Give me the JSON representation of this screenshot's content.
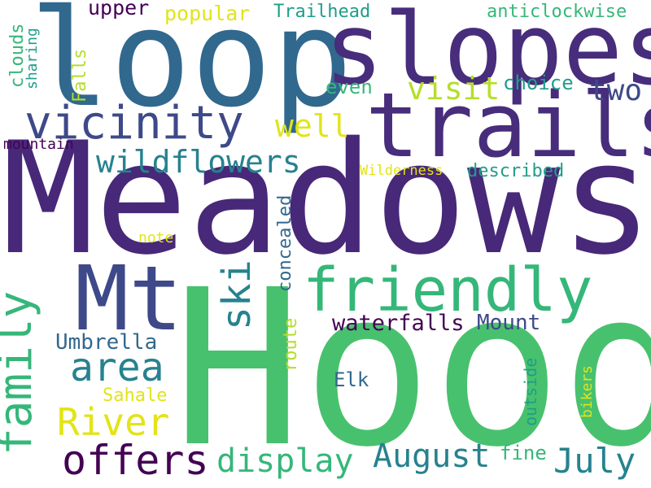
{
  "words": {
    "meadows": "Meadows",
    "hood": "Hood",
    "loop": "loop",
    "slopes": "slopes",
    "trails": "trails",
    "mt": "Mt",
    "friendly": "friendly",
    "family": "family",
    "vicinity": "vicinity",
    "wildflowers": "wildflowers",
    "area": "area",
    "river": "River",
    "offers": "offers",
    "display": "display",
    "august": "August",
    "july": "July",
    "ski": "ski",
    "visit": "visit",
    "well": "well",
    "two": "two",
    "trailhead": "Trailhead",
    "popular": "popular",
    "upper": "upper",
    "anticlockwise": "anticlockwise",
    "choice": "choice",
    "even": "even",
    "clouds": "clouds",
    "falls": "Falls",
    "sharing": "sharing",
    "mountain": "mountain",
    "wilderness": "Wilderness",
    "described": "described",
    "concealed": "concealed",
    "note": "note",
    "umbrella": "Umbrella",
    "waterfalls": "waterfalls",
    "mount": "Mount",
    "route": "route",
    "sahale": "Sahale",
    "elk": "Elk",
    "outside": "outside",
    "bikers": "bikers",
    "fine": "fine"
  },
  "colors": {
    "background": "#ffffff",
    "dark_purple": "#440154",
    "indigo": "#482878",
    "purple": "#472d7b",
    "blue": "#3e4989",
    "slate_blue": "#31688e",
    "teal": "#26828e",
    "green_teal": "#1f9e89",
    "green": "#35b779",
    "bright_green": "#48c16e",
    "lime": "#b5de2b",
    "yellow": "#e2e418"
  }
}
